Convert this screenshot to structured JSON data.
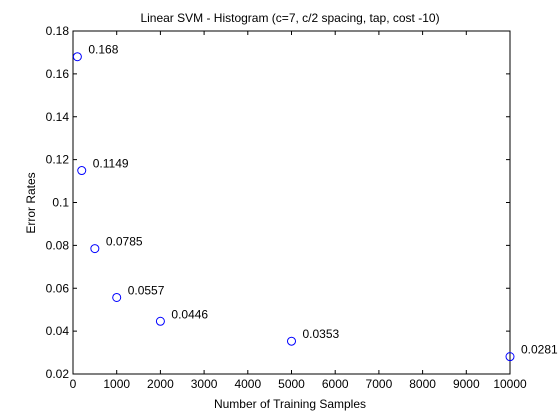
{
  "chart_data": {
    "type": "scatter",
    "title": "Linear SVM - Histogram (c=7, c/2 spacing, tap, cost -10)",
    "xlabel": "Number of Training Samples",
    "ylabel": "Error Rates",
    "xlim": [
      0,
      10000
    ],
    "ylim": [
      0.02,
      0.18
    ],
    "xticks": [
      0,
      1000,
      2000,
      3000,
      4000,
      5000,
      6000,
      7000,
      8000,
      9000,
      10000
    ],
    "xtick_labels": [
      "0",
      "1000",
      "2000",
      "3000",
      "4000",
      "5000",
      "6000",
      "7000",
      "8000",
      "9000",
      "10000"
    ],
    "yticks": [
      0.02,
      0.04,
      0.06,
      0.08,
      0.1,
      0.12,
      0.14,
      0.16,
      0.18
    ],
    "ytick_labels": [
      "0.02",
      "0.04",
      "0.06",
      "0.08",
      "0.1",
      "0.12",
      "0.14",
      "0.16",
      "0.18"
    ],
    "grid": false,
    "marker": "circle-open",
    "marker_color": "#0000ff",
    "points": [
      {
        "x": 100,
        "y": 0.168,
        "label": "0.168"
      },
      {
        "x": 200,
        "y": 0.1149,
        "label": "0.1149"
      },
      {
        "x": 500,
        "y": 0.0785,
        "label": "0.0785"
      },
      {
        "x": 1000,
        "y": 0.0557,
        "label": "0.0557"
      },
      {
        "x": 2000,
        "y": 0.0446,
        "label": "0.0446"
      },
      {
        "x": 5000,
        "y": 0.0353,
        "label": "0.0353"
      },
      {
        "x": 10000,
        "y": 0.0281,
        "label": "0.0281"
      }
    ]
  }
}
